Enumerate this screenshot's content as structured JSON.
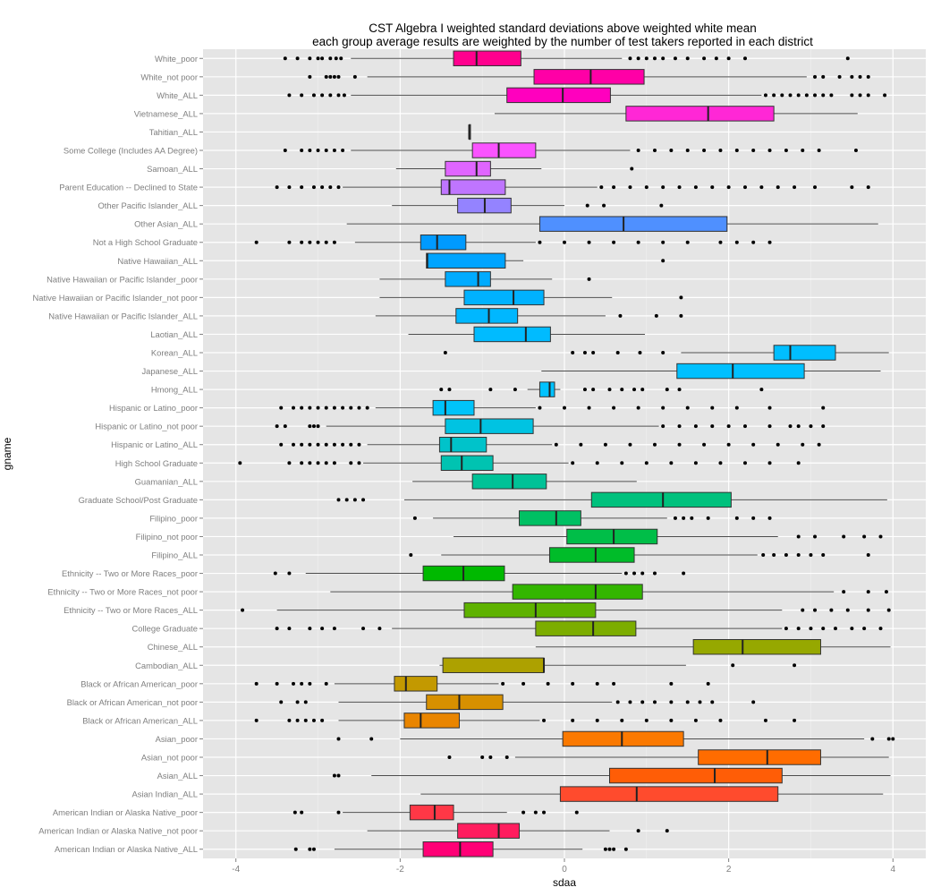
{
  "chart_data": {
    "type": "boxplot",
    "title_line1": "CST Algebra I weighted standard deviations above weighted white mean",
    "title_line2": "each group average results are weighted by the number of test takers reported in each district",
    "xlabel": "sdaa",
    "ylabel": "gname",
    "xlim": [
      -4.4,
      4.4
    ],
    "xticks": [
      -4,
      -2,
      0,
      2,
      4
    ],
    "grid": true,
    "legend": "none",
    "groups": [
      {
        "name": "White_poor",
        "color": "#F8766D",
        "whisker_low": -2.6,
        "q1": -1.35,
        "median": -1.07,
        "q3": -0.53,
        "whisker_high": 0.7,
        "outliers": [
          -3.4,
          -3.25,
          -3.1,
          -3.0,
          -2.95,
          -2.85,
          -2.78,
          -2.72,
          0.8,
          0.9,
          1.0,
          1.1,
          1.2,
          1.35,
          1.5,
          1.7,
          1.85,
          2.0,
          2.2,
          3.45
        ]
      },
      {
        "name": "White_not poor",
        "color": "#F8766D",
        "whisker_low": -2.4,
        "q1": -0.37,
        "median": 0.32,
        "q3": 0.97,
        "whisker_high": 2.95,
        "outliers": [
          -3.1,
          -2.9,
          -2.85,
          -2.8,
          -2.75,
          -2.55,
          3.05,
          3.15,
          3.35,
          3.5,
          3.6,
          3.7
        ]
      },
      {
        "name": "White_ALL",
        "color": "#F8766D",
        "whisker_low": -2.6,
        "q1": -0.7,
        "median": -0.02,
        "q3": 0.56,
        "whisker_high": 2.4,
        "outliers": [
          -3.35,
          -3.2,
          -3.05,
          -2.95,
          -2.85,
          -2.75,
          -2.68,
          2.45,
          2.55,
          2.65,
          2.75,
          2.85,
          2.95,
          3.05,
          3.15,
          3.25,
          3.5,
          3.6,
          3.7,
          3.9
        ]
      },
      {
        "name": "Vietnamese_ALL",
        "color": "#F8766D",
        "whisker_low": -0.85,
        "q1": 0.75,
        "median": 1.75,
        "q3": 2.55,
        "whisker_high": 3.57,
        "outliers": []
      },
      {
        "name": "Tahitian_ALL",
        "color": "#F8766D",
        "whisker_low": -1.16,
        "q1": -1.16,
        "median": -1.16,
        "q3": -1.16,
        "whisker_high": -1.16,
        "outliers": []
      },
      {
        "name": "Some College (Includes AA Degree)",
        "color": "#F8766D",
        "whisker_low": -2.6,
        "q1": -1.12,
        "median": -0.8,
        "q3": -0.35,
        "whisker_high": 0.8,
        "outliers": [
          -3.4,
          -3.2,
          -3.1,
          -3.0,
          -2.9,
          -2.8,
          -2.7,
          0.9,
          1.1,
          1.3,
          1.5,
          1.7,
          1.9,
          2.1,
          2.3,
          2.5,
          2.7,
          2.9,
          3.1,
          3.55
        ]
      },
      {
        "name": "Samoan_ALL",
        "color": "#F8766D",
        "whisker_low": -2.05,
        "q1": -1.45,
        "median": -1.07,
        "q3": -0.9,
        "whisker_high": -0.28,
        "outliers": [
          0.82
        ]
      },
      {
        "name": "Parent Education -- Declined to State",
        "color": "#F8766D",
        "whisker_low": -2.7,
        "q1": -1.5,
        "median": -1.4,
        "q3": -0.72,
        "whisker_high": 0.4,
        "outliers": [
          -3.5,
          -3.35,
          -3.2,
          -3.05,
          -2.95,
          -2.85,
          -2.75,
          0.45,
          0.6,
          0.8,
          1.0,
          1.2,
          1.4,
          1.6,
          1.8,
          2.0,
          2.2,
          2.4,
          2.6,
          2.8,
          3.05,
          3.5,
          3.7
        ]
      },
      {
        "name": "Other Pacific Islander_ALL",
        "color": "#F8766D",
        "whisker_low": -2.1,
        "q1": -1.3,
        "median": -0.97,
        "q3": -0.65,
        "whisker_high": 0.0,
        "outliers": [
          0.28,
          0.48,
          1.18
        ]
      },
      {
        "name": "Other Asian_ALL",
        "color": "#F8766D",
        "whisker_low": -2.65,
        "q1": -0.3,
        "median": 0.72,
        "q3": 1.98,
        "whisker_high": 3.82,
        "outliers": []
      },
      {
        "name": "Not a High School Graduate",
        "color": "#F8766D",
        "whisker_low": -2.55,
        "q1": -1.75,
        "median": -1.55,
        "q3": -1.2,
        "whisker_high": -0.35,
        "outliers": [
          -3.75,
          -3.35,
          -3.2,
          -3.1,
          -3.0,
          -2.9,
          -2.8,
          -0.3,
          0.0,
          0.3,
          0.6,
          0.9,
          1.2,
          1.5,
          1.9,
          2.1,
          2.3,
          2.5
        ]
      },
      {
        "name": "Native Hawaiian_ALL",
        "color": "#F8766D",
        "whisker_low": -1.68,
        "q1": -1.68,
        "median": -1.67,
        "q3": -0.72,
        "whisker_high": -0.5,
        "outliers": [
          1.2
        ]
      },
      {
        "name": "Native Hawaiian or Pacific Islander_poor",
        "color": "#F8766D",
        "whisker_low": -2.25,
        "q1": -1.45,
        "median": -1.05,
        "q3": -0.9,
        "whisker_high": -0.15,
        "outliers": [
          0.3
        ]
      },
      {
        "name": "Native Hawaiian or Pacific Islander_not poor",
        "color": "#F8766D",
        "whisker_low": -2.25,
        "q1": -1.22,
        "median": -0.62,
        "q3": -0.25,
        "whisker_high": 0.58,
        "outliers": [
          1.42
        ]
      },
      {
        "name": "Native Hawaiian or Pacific Islander_ALL",
        "color": "#F8766D",
        "whisker_low": -2.3,
        "q1": -1.32,
        "median": -0.92,
        "q3": -0.57,
        "whisker_high": 0.5,
        "outliers": [
          0.68,
          1.12,
          1.42
        ]
      },
      {
        "name": "Laotian_ALL",
        "color": "#F8766D",
        "whisker_low": -1.9,
        "q1": -1.1,
        "median": -0.47,
        "q3": -0.17,
        "whisker_high": 0.98,
        "outliers": []
      },
      {
        "name": "Korean_ALL",
        "color": "#F8766D",
        "whisker_low": 1.42,
        "q1": 2.55,
        "median": 2.75,
        "q3": 3.3,
        "whisker_high": 3.95,
        "outliers": [
          -1.45,
          0.1,
          0.25,
          0.35,
          0.65,
          0.92,
          1.2
        ]
      },
      {
        "name": "Japanese_ALL",
        "color": "#F8766D",
        "whisker_low": -0.28,
        "q1": 1.37,
        "median": 2.05,
        "q3": 2.92,
        "whisker_high": 3.85,
        "outliers": []
      },
      {
        "name": "Hmong_ALL",
        "color": "#F8766D",
        "whisker_low": -0.45,
        "q1": -0.3,
        "median": -0.18,
        "q3": -0.12,
        "whisker_high": -0.05,
        "outliers": [
          -1.5,
          -1.4,
          -0.9,
          -0.6,
          0.25,
          0.35,
          0.55,
          0.7,
          0.85,
          0.95,
          1.25,
          1.4,
          2.4
        ]
      },
      {
        "name": "Hispanic or Latino_poor",
        "color": "#F8766D",
        "whisker_low": -2.3,
        "q1": -1.6,
        "median": -1.45,
        "q3": -1.1,
        "whisker_high": -0.35,
        "outliers": [
          -3.45,
          -3.3,
          -3.2,
          -3.1,
          -3.0,
          -2.9,
          -2.8,
          -2.7,
          -2.6,
          -2.5,
          -2.4,
          -0.3,
          0.0,
          0.3,
          0.6,
          0.9,
          1.2,
          1.5,
          1.8,
          2.1,
          2.5,
          3.15
        ]
      },
      {
        "name": "Hispanic or Latino_not poor",
        "color": "#F8766D",
        "whisker_low": -2.9,
        "q1": -1.45,
        "median": -1.02,
        "q3": -0.38,
        "whisker_high": 1.15,
        "outliers": [
          -3.5,
          -3.4,
          -3.1,
          -3.05,
          -3.0,
          1.2,
          1.4,
          1.6,
          1.8,
          2.0,
          2.2,
          2.5,
          2.75,
          2.85,
          3.0,
          3.15
        ]
      },
      {
        "name": "Hispanic or Latino_ALL",
        "color": "#F8766D",
        "whisker_low": -2.4,
        "q1": -1.52,
        "median": -1.38,
        "q3": -0.95,
        "whisker_high": -0.15,
        "outliers": [
          -3.45,
          -3.3,
          -3.2,
          -3.1,
          -3.0,
          -2.9,
          -2.8,
          -2.7,
          -2.6,
          -2.5,
          -0.1,
          0.2,
          0.5,
          0.8,
          1.1,
          1.4,
          1.7,
          2.0,
          2.3,
          2.6,
          2.9,
          3.1
        ]
      },
      {
        "name": "High School Graduate",
        "color": "#F8766D",
        "whisker_low": -2.45,
        "q1": -1.5,
        "median": -1.25,
        "q3": -0.87,
        "whisker_high": 0.05,
        "outliers": [
          -3.95,
          -3.35,
          -3.2,
          -3.1,
          -3.0,
          -2.9,
          -2.8,
          -2.6,
          -2.5,
          0.1,
          0.4,
          0.7,
          1.0,
          1.3,
          1.6,
          1.9,
          2.2,
          2.5,
          2.85
        ]
      },
      {
        "name": "Guamanian_ALL",
        "color": "#F8766D",
        "whisker_low": -1.85,
        "q1": -1.12,
        "median": -0.63,
        "q3": -0.22,
        "whisker_high": 0.88,
        "outliers": []
      },
      {
        "name": "Graduate School/Post Graduate",
        "color": "#F8766D",
        "whisker_low": -1.95,
        "q1": 0.33,
        "median": 1.2,
        "q3": 2.03,
        "whisker_high": 3.93,
        "outliers": [
          -2.75,
          -2.65,
          -2.55,
          -2.45
        ]
      },
      {
        "name": "Filipino_poor",
        "color": "#F8766D",
        "whisker_low": -1.6,
        "q1": -0.55,
        "median": -0.1,
        "q3": 0.2,
        "whisker_high": 1.25,
        "outliers": [
          -1.82,
          1.35,
          1.45,
          1.55,
          1.75,
          2.1,
          2.3,
          2.5
        ]
      },
      {
        "name": "Filipino_not poor",
        "color": "#F8766D",
        "whisker_low": -1.35,
        "q1": 0.03,
        "median": 0.6,
        "q3": 1.13,
        "whisker_high": 2.6,
        "outliers": [
          2.85,
          3.05,
          3.4,
          3.65,
          3.85
        ]
      },
      {
        "name": "Filipino_ALL",
        "color": "#F8766D",
        "whisker_low": -1.5,
        "q1": -0.18,
        "median": 0.38,
        "q3": 0.85,
        "whisker_high": 2.35,
        "outliers": [
          -1.87,
          2.42,
          2.55,
          2.7,
          2.85,
          3.0,
          3.15,
          3.7
        ]
      },
      {
        "name": "Ethnicity -- Two or More Races_poor",
        "color": "#F8766D",
        "whisker_low": -3.15,
        "q1": -1.72,
        "median": -1.23,
        "q3": -0.73,
        "whisker_high": 0.7,
        "outliers": [
          -3.52,
          -3.35,
          0.75,
          0.85,
          0.95,
          1.1,
          1.45
        ]
      },
      {
        "name": "Ethnicity -- Two or More Races_not poor",
        "color": "#F8766D",
        "whisker_low": -2.85,
        "q1": -0.63,
        "median": 0.38,
        "q3": 0.95,
        "whisker_high": 3.28,
        "outliers": [
          3.4,
          3.7,
          3.92
        ]
      },
      {
        "name": "Ethnicity -- Two or More Races_ALL",
        "color": "#F8766D",
        "whisker_low": -3.5,
        "q1": -1.22,
        "median": -0.35,
        "q3": 0.38,
        "whisker_high": 2.65,
        "outliers": [
          -3.92,
          2.9,
          3.05,
          3.25,
          3.45,
          3.7,
          3.95
        ]
      },
      {
        "name": "College Graduate",
        "color": "#F8766D",
        "whisker_low": -2.1,
        "q1": -0.35,
        "median": 0.35,
        "q3": 0.87,
        "whisker_high": 2.65,
        "outliers": [
          -3.5,
          -3.35,
          -3.1,
          -2.95,
          -2.8,
          -2.45,
          -2.25,
          2.7,
          2.85,
          3.0,
          3.15,
          3.3,
          3.5,
          3.65,
          3.85
        ]
      },
      {
        "name": "Chinese_ALL",
        "color": "#F8766D",
        "whisker_low": -0.35,
        "q1": 1.57,
        "median": 2.17,
        "q3": 3.12,
        "whisker_high": 3.97,
        "outliers": []
      },
      {
        "name": "Cambodian_ALL",
        "color": "#F8766D",
        "whisker_low": -1.52,
        "q1": -1.48,
        "median": -0.25,
        "q3": -0.25,
        "whisker_high": 1.48,
        "outliers": [
          2.05,
          2.8
        ]
      },
      {
        "name": "Black or African American_poor",
        "color": "#F8766D",
        "whisker_low": -2.8,
        "q1": -2.07,
        "median": -1.93,
        "q3": -1.55,
        "whisker_high": -0.8,
        "outliers": [
          -3.75,
          -3.5,
          -3.3,
          -3.2,
          -3.1,
          -2.9,
          -0.75,
          -0.5,
          -0.2,
          0.1,
          0.4,
          0.6,
          1.3,
          1.75
        ]
      },
      {
        "name": "Black or African American_not poor",
        "color": "#F8766D",
        "whisker_low": -2.75,
        "q1": -1.68,
        "median": -1.28,
        "q3": -0.75,
        "whisker_high": 0.58,
        "outliers": [
          -3.45,
          -3.25,
          -3.15,
          0.65,
          0.8,
          0.95,
          1.1,
          1.3,
          1.5,
          1.65,
          1.8,
          2.3
        ]
      },
      {
        "name": "Black or African American_ALL",
        "color": "#F8766D",
        "whisker_low": -2.75,
        "q1": -1.95,
        "median": -1.75,
        "q3": -1.28,
        "whisker_high": -0.3,
        "outliers": [
          -3.75,
          -3.35,
          -3.25,
          -3.15,
          -3.05,
          -2.95,
          -0.25,
          0.1,
          0.4,
          0.7,
          1.0,
          1.3,
          1.6,
          1.9,
          2.45,
          2.8
        ]
      },
      {
        "name": "Asian_poor",
        "color": "#F8766D",
        "whisker_low": -2.0,
        "q1": -0.02,
        "median": 0.7,
        "q3": 1.45,
        "whisker_high": 3.65,
        "outliers": [
          -2.75,
          -2.35,
          3.75,
          3.95,
          4.0
        ]
      },
      {
        "name": "Asian_not poor",
        "color": "#F8766D",
        "whisker_low": -0.6,
        "q1": 1.63,
        "median": 2.47,
        "q3": 3.12,
        "whisker_high": 3.95,
        "outliers": [
          -1.4,
          -1.0,
          -0.9,
          -0.7
        ]
      },
      {
        "name": "Asian_ALL",
        "color": "#F8766D",
        "whisker_low": -2.35,
        "q1": 0.55,
        "median": 1.83,
        "q3": 2.65,
        "whisker_high": 3.97,
        "outliers": [
          -2.8,
          -2.75
        ]
      },
      {
        "name": "Asian Indian_ALL",
        "color": "#F8766D",
        "whisker_low": -1.75,
        "q1": -0.05,
        "median": 0.88,
        "q3": 2.6,
        "whisker_high": 3.88,
        "outliers": []
      },
      {
        "name": "American Indian or Alaska Native_poor",
        "color": "#F8766D",
        "whisker_low": -2.7,
        "q1": -1.88,
        "median": -1.58,
        "q3": -1.35,
        "whisker_high": -0.7,
        "outliers": [
          -3.28,
          -3.2,
          -2.75,
          -0.5,
          -0.35,
          -0.25,
          0.15
        ]
      },
      {
        "name": "American Indian or Alaska Native_not poor",
        "color": "#F8766D",
        "whisker_low": -2.4,
        "q1": -1.3,
        "median": -0.8,
        "q3": -0.55,
        "whisker_high": 0.55,
        "outliers": [
          0.9,
          1.25
        ]
      },
      {
        "name": "American Indian or Alaska Native_ALL",
        "color": "#F8766D",
        "whisker_low": -2.8,
        "q1": -1.72,
        "median": -1.27,
        "q3": -0.87,
        "whisker_high": 0.22,
        "outliers": [
          -3.27,
          -3.1,
          -3.05,
          0.5,
          0.55,
          0.6,
          0.75
        ]
      }
    ]
  }
}
